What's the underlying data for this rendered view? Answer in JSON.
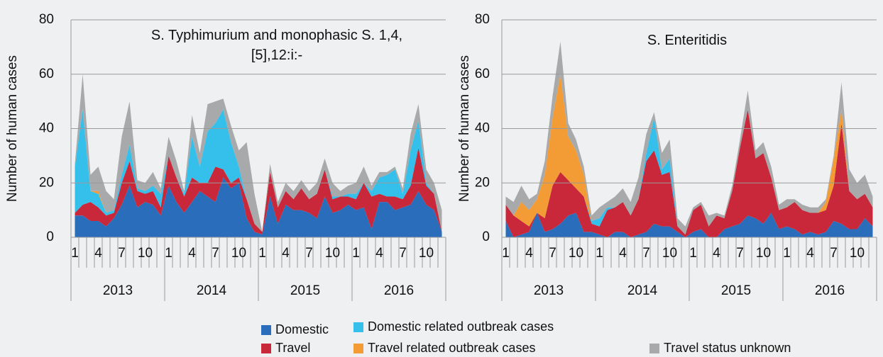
{
  "chart_data": [
    {
      "type": "area",
      "stacked": true,
      "title": "S. Typhimurium and monophasic S. 1,4,[5],12:i:-",
      "y_label": "Number of human cases",
      "categories": [
        "1",
        null,
        null,
        "4",
        null,
        null,
        "7",
        null,
        null,
        "10",
        null,
        null,
        "1",
        null,
        null,
        "4",
        null,
        null,
        "7",
        null,
        null,
        "10",
        null,
        null,
        "1",
        null,
        null,
        "4",
        null,
        null,
        "7",
        null,
        null,
        "10",
        null,
        null,
        "1",
        null,
        null,
        "4",
        null,
        null,
        "7",
        null,
        null,
        "10",
        null,
        null
      ],
      "groups": [
        "2013",
        "2014",
        "2015",
        "2016"
      ],
      "ylim": [
        0,
        80
      ],
      "yticks": [
        0,
        20,
        40,
        60,
        80
      ],
      "grid": true,
      "series": [
        {
          "color": "#2a6ebb",
          "values": [
            8,
            8,
            6,
            6,
            4,
            7,
            12,
            19,
            11,
            13,
            12,
            8,
            19,
            13,
            9,
            13,
            17,
            15,
            13,
            22,
            18,
            20,
            7,
            2,
            1,
            15,
            5,
            12,
            10,
            10,
            9,
            7,
            15,
            9,
            10,
            12,
            10,
            11,
            3,
            13,
            13,
            10,
            11,
            12,
            17,
            12,
            10,
            2
          ]
        },
        {
          "color": "#c8283a",
          "values": [
            1,
            4,
            7,
            5,
            4,
            2,
            8,
            9,
            6,
            3,
            5,
            3,
            11,
            9,
            6,
            9,
            3,
            5,
            13,
            3,
            2,
            2,
            7,
            3,
            1,
            9,
            6,
            5,
            4,
            8,
            5,
            9,
            10,
            5,
            5,
            3,
            4,
            9,
            12,
            3,
            2,
            5,
            3,
            7,
            16,
            7,
            6,
            0
          ]
        },
        {
          "color": "#35c0ec",
          "values": [
            17,
            35,
            4,
            5,
            1,
            1,
            3,
            6,
            1,
            1,
            2,
            5,
            0,
            0,
            1,
            15,
            6,
            19,
            16,
            22,
            15,
            4,
            0,
            0,
            0,
            0,
            0,
            0,
            0,
            0,
            0,
            0,
            0,
            1,
            0,
            1,
            2,
            0,
            2,
            6,
            8,
            10,
            2,
            13,
            10,
            1,
            0,
            0
          ]
        },
        {
          "color": "#f39c35",
          "values": [
            0,
            0,
            0,
            1,
            0,
            0,
            0,
            0,
            0,
            0,
            0,
            0,
            0,
            0,
            0,
            0,
            0,
            0,
            0,
            0,
            0,
            0,
            0,
            0,
            0,
            0,
            0,
            0,
            0,
            0,
            0,
            0,
            0,
            0,
            0,
            0,
            0,
            0,
            0,
            0,
            0,
            0,
            0,
            0,
            0,
            0,
            0,
            0
          ]
        },
        {
          "color": "#a8a9ab",
          "values": [
            1,
            13,
            6,
            9,
            8,
            4,
            14,
            16,
            3,
            3,
            5,
            2,
            7,
            6,
            1,
            8,
            5,
            10,
            8,
            4,
            6,
            6,
            21,
            11,
            0,
            3,
            2,
            3,
            3,
            3,
            3,
            4,
            4,
            5,
            2,
            3,
            4,
            6,
            2,
            2,
            1,
            1,
            2,
            6,
            6,
            5,
            4,
            8
          ]
        }
      ]
    },
    {
      "type": "area",
      "stacked": true,
      "title": "S. Enteritidis",
      "y_label": "Number of human cases",
      "categories": [
        "1",
        null,
        null,
        "4",
        null,
        null,
        "7",
        null,
        null,
        "10",
        null,
        null,
        "1",
        null,
        null,
        "4",
        null,
        null,
        "7",
        null,
        null,
        "10",
        null,
        null,
        "1",
        null,
        null,
        "4",
        null,
        null,
        "7",
        null,
        null,
        "10",
        null,
        null,
        "1",
        null,
        null,
        "4",
        null,
        null,
        "7",
        null,
        null,
        "10",
        null,
        null
      ],
      "groups": [
        "2013",
        "2014",
        "2015",
        "2016"
      ],
      "ylim": [
        0,
        80
      ],
      "yticks": [
        0,
        20,
        40,
        60,
        80
      ],
      "grid": true,
      "series": [
        {
          "color": "#2a6ebb",
          "values": [
            6,
            0,
            1,
            2,
            9,
            2,
            3,
            5,
            8,
            9,
            2,
            2,
            1,
            0,
            2,
            2,
            0,
            1,
            2,
            5,
            4,
            4,
            2,
            0,
            2,
            3,
            0,
            0,
            3,
            4,
            5,
            8,
            7,
            5,
            9,
            3,
            4,
            3,
            1,
            2,
            1,
            2,
            6,
            5,
            3,
            3,
            7,
            4
          ]
        },
        {
          "color": "#c8283a",
          "values": [
            6,
            8,
            5,
            2,
            0,
            5,
            16,
            19,
            13,
            9,
            13,
            3,
            3,
            10,
            9,
            11,
            8,
            13,
            26,
            27,
            19,
            20,
            2,
            1,
            8,
            9,
            4,
            8,
            4,
            13,
            28,
            39,
            22,
            26,
            13,
            7,
            7,
            10,
            9,
            7,
            8,
            8,
            13,
            37,
            14,
            11,
            9,
            7
          ]
        },
        {
          "color": "#35c0ec",
          "values": [
            0,
            0,
            0,
            0,
            0,
            0,
            0,
            0,
            0,
            0,
            0,
            1,
            3,
            1,
            0,
            0,
            0,
            0,
            3,
            12,
            2,
            5,
            0,
            0,
            0,
            0,
            0,
            0,
            0,
            0,
            0,
            0,
            0,
            0,
            0,
            0,
            0,
            0,
            0,
            0,
            0,
            0,
            0,
            0,
            0,
            0,
            0,
            0
          ]
        },
        {
          "color": "#f39c35",
          "values": [
            0,
            0,
            7,
            6,
            5,
            16,
            25,
            36,
            16,
            14,
            8,
            0,
            0,
            0,
            0,
            0,
            0,
            0,
            0,
            0,
            0,
            0,
            0,
            0,
            0,
            0,
            0,
            0,
            0,
            0,
            0,
            0,
            0,
            0,
            0,
            0,
            0,
            0,
            0,
            0,
            0,
            3,
            10,
            5,
            0,
            0,
            0,
            0
          ]
        },
        {
          "color": "#a8a9ab",
          "values": [
            3,
            5,
            6,
            4,
            2,
            5,
            8,
            12,
            5,
            4,
            3,
            2,
            4,
            2,
            4,
            5,
            5,
            8,
            7,
            2,
            6,
            7,
            3,
            3,
            1,
            1,
            4,
            1,
            1,
            2,
            3,
            7,
            3,
            4,
            4,
            2,
            3,
            1,
            2,
            2,
            2,
            1,
            1,
            10,
            8,
            6,
            7,
            4
          ]
        }
      ]
    }
  ],
  "legend": {
    "items": [
      {
        "name": "Domestic"
      },
      {
        "name": "Travel"
      },
      {
        "name": "Domestic related outbreak cases"
      },
      {
        "name": "Travel related outbreak cases"
      },
      {
        "name": "Travel status unknown"
      }
    ]
  }
}
